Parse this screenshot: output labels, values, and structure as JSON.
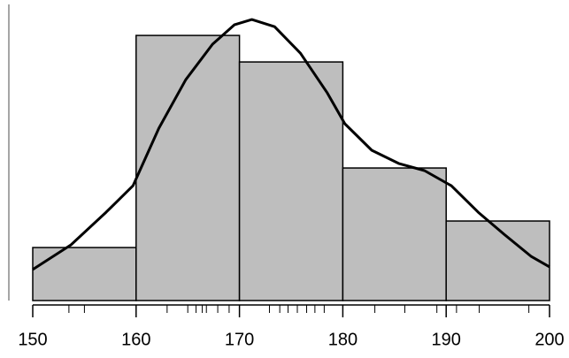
{
  "chart_data": {
    "type": "histogram",
    "bins": [
      150,
      160,
      170,
      180,
      190,
      200
    ],
    "counts": [
      2,
      10,
      9,
      5,
      3
    ],
    "color": "#bebebe",
    "xlim": [
      150,
      200
    ],
    "xticks": [
      150,
      160,
      170,
      180,
      190,
      200
    ],
    "ylim": [
      0,
      11.17
    ],
    "curve": {
      "x": [
        150,
        153.7,
        157.1,
        159.7,
        162.2,
        164.8,
        167.4,
        169.5,
        171.2,
        173.4,
        175.9,
        178.5,
        180.2,
        182.8,
        185.4,
        187.9,
        190.5,
        193.1,
        195.6,
        198.2,
        200
      ],
      "y": [
        1.17,
        2.1,
        3.33,
        4.33,
        6.5,
        8.33,
        9.67,
        10.4,
        10.6,
        10.33,
        9.33,
        7.83,
        6.67,
        5.67,
        5.17,
        4.9,
        4.33,
        3.33,
        2.5,
        1.67,
        1.27
      ]
    },
    "rug": [
      153.5,
      155.0,
      163.0,
      165.0,
      165.8,
      166.4,
      166.8,
      167.9,
      169.0,
      172.9,
      173.9,
      174.7,
      175.6,
      176.5,
      177.3,
      178.2,
      183.1,
      186.0,
      189.1,
      191.0,
      193.2,
      198.0
    ]
  }
}
